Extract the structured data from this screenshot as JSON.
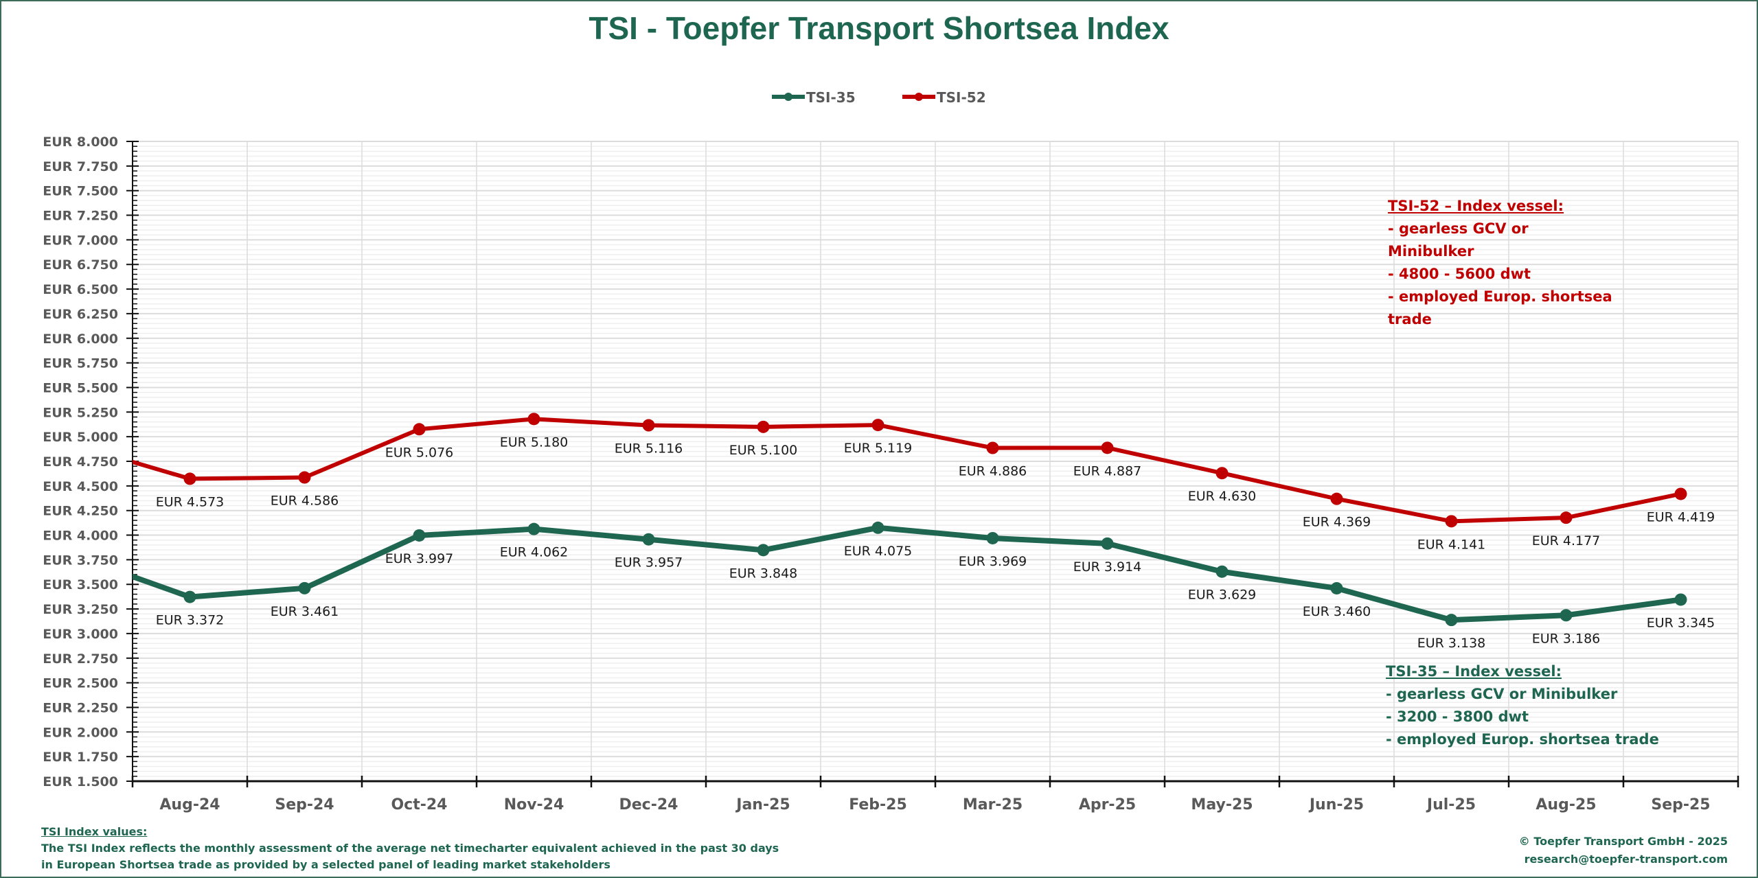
{
  "title": "TSI - Toepfer Transport Shortsea Index",
  "colors": {
    "tsi35": "#1e6650",
    "tsi52": "#c00000",
    "axis_text": "#595959",
    "label_text": "#1a1a1a"
  },
  "chart_data": {
    "type": "line",
    "title": "TSI - Toepfer Transport Shortsea Index",
    "xlabel": "",
    "ylabel": "",
    "categories": [
      "Aug-24",
      "Sep-24",
      "Oct-24",
      "Nov-24",
      "Dec-24",
      "Jan-25",
      "Feb-25",
      "Mar-25",
      "Apr-25",
      "May-25",
      "Jun-25",
      "Jul-25",
      "Aug-25",
      "Sep-25"
    ],
    "ylim": [
      1500,
      8000
    ],
    "y_major_step": 250,
    "y_minor_step": 50,
    "y_tick_labels": [
      "EUR 8.000",
      "EUR 7.750",
      "EUR 7.500",
      "EUR 7.250",
      "EUR 7.000",
      "EUR 6.750",
      "EUR 6.500",
      "EUR 6.250",
      "EUR 6.000",
      "EUR 5.750",
      "EUR 5.500",
      "EUR 5.250",
      "EUR 5.000",
      "EUR 4.750",
      "EUR 4.500",
      "EUR 4.250",
      "EUR 4.000",
      "EUR 3.750",
      "EUR 3.500",
      "EUR 3.250",
      "EUR 3.000",
      "EUR 2.750",
      "EUR 2.500",
      "EUR 2.250",
      "EUR 2.000",
      "EUR 1.750",
      "EUR 1.500"
    ],
    "grid": true,
    "legend": {
      "position": "top-center",
      "entries": [
        "TSI-35",
        "TSI-52"
      ]
    },
    "series": [
      {
        "name": "TSI-35",
        "color": "#1e6650",
        "prior_value_offscreen": 3786,
        "values": [
          3372,
          3461,
          3997,
          4062,
          3957,
          3848,
          4075,
          3969,
          3914,
          3629,
          3460,
          3138,
          3186,
          3345
        ],
        "labels": [
          "EUR 3.372",
          "EUR 3.461",
          "EUR 3.997",
          "EUR 4.062",
          "EUR 3.957",
          "EUR 3.848",
          "EUR 4.075",
          "EUR 3.969",
          "EUR 3.914",
          "EUR 3.629",
          "EUR 3.460",
          "EUR 3.138",
          "EUR 3.186",
          "EUR 3.345"
        ]
      },
      {
        "name": "TSI-52",
        "color": "#c00000",
        "prior_value_offscreen": 4915,
        "values": [
          4573,
          4586,
          5076,
          5180,
          5116,
          5100,
          5119,
          4886,
          4887,
          4630,
          4369,
          4141,
          4177,
          4419
        ],
        "labels": [
          "EUR 4.573",
          "EUR 4.586",
          "EUR 5.076",
          "EUR 5.180",
          "EUR 5.116",
          "EUR 5.100",
          "EUR 5.119",
          "EUR 4.886",
          "EUR 4.887",
          "EUR 4.630",
          "EUR 4.369",
          "EUR 4.141",
          "EUR 4.177",
          "EUR 4.419"
        ]
      }
    ]
  },
  "annotations": {
    "tsi52": {
      "heading": "TSI-52 – Index vessel:",
      "lines": [
        "- gearless GCV or Minibulker",
        "- 4800 - 5600 dwt",
        "- employed Europ. shortsea trade"
      ]
    },
    "tsi35": {
      "heading": "TSI-35 – Index vessel:",
      "lines": [
        "- gearless GCV or Minibulker",
        "- 3200 - 3800 dwt",
        "- employed Europ. shortsea trade"
      ]
    }
  },
  "footnote": {
    "heading": "TSI Index values:",
    "line1": "The TSI Index reflects the monthly assessment of the average net timecharter equivalent achieved in the past 30 days",
    "line2": "in European Shortsea trade as provided by a selected panel of leading market stakeholders"
  },
  "copyright": {
    "line1": "© Toepfer Transport GmbH - 2025",
    "line2": "research@toepfer-transport.com"
  }
}
